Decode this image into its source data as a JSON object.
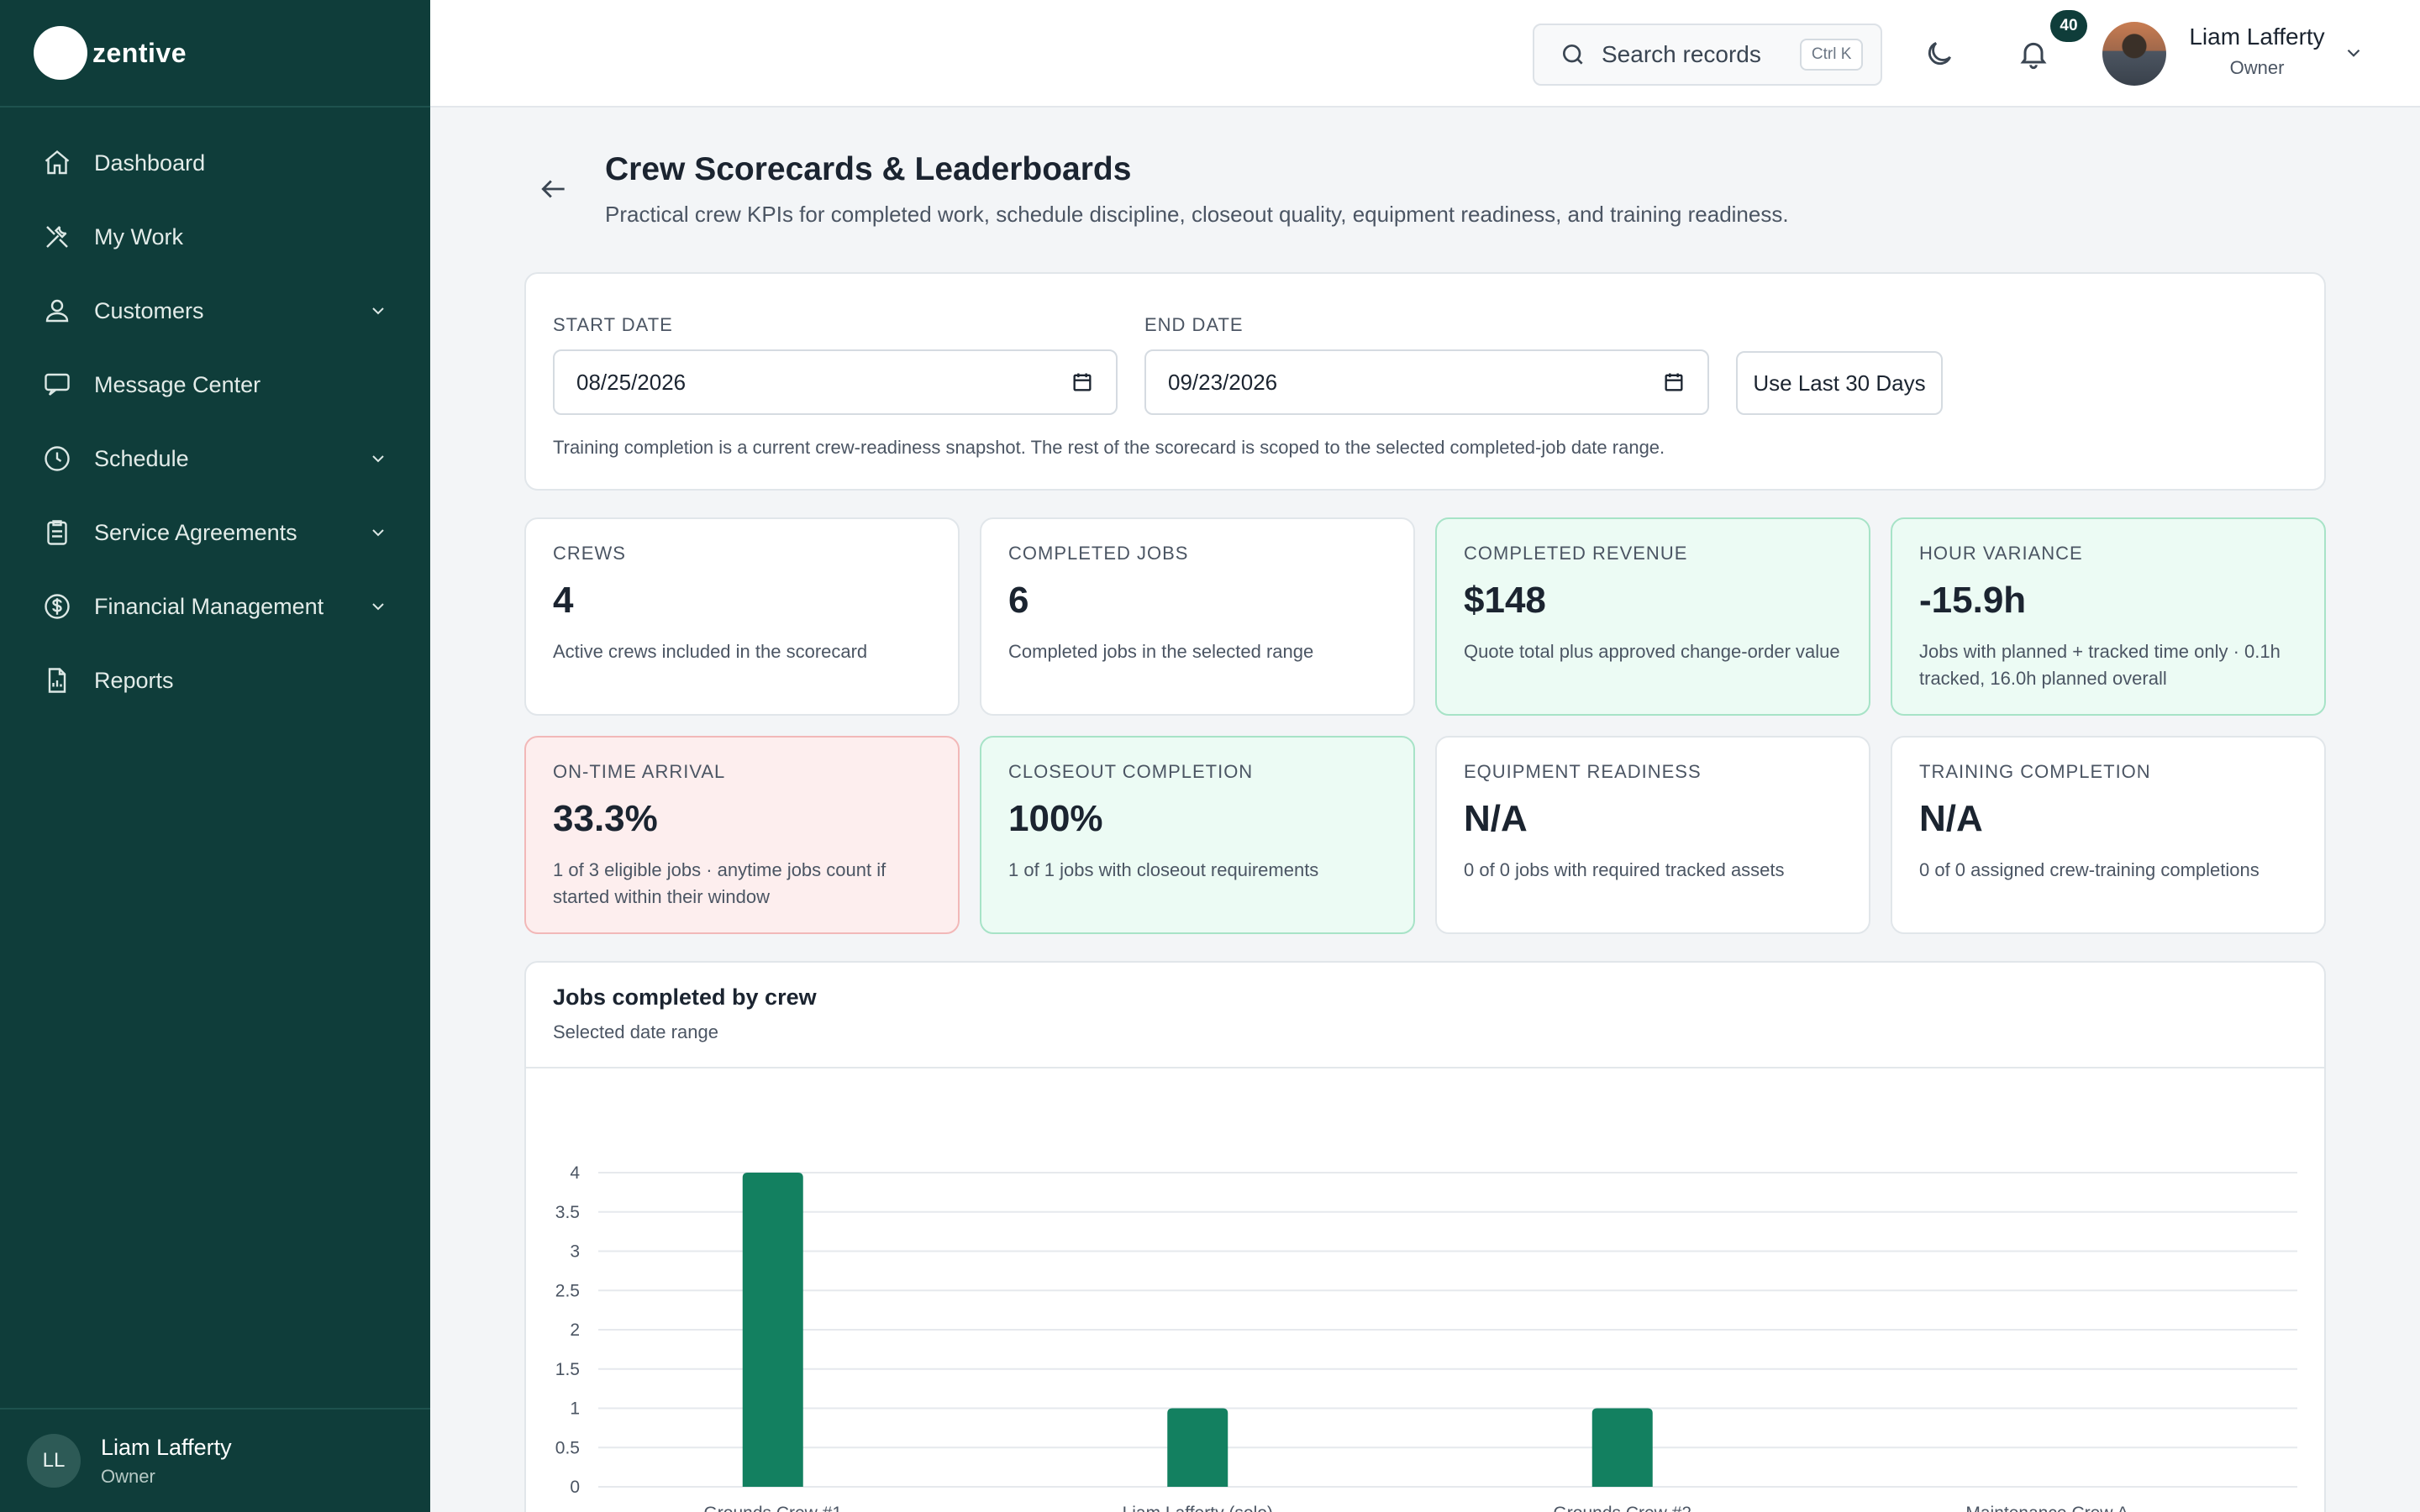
{
  "brand": {
    "name": "zentive"
  },
  "sidebar": {
    "items": [
      {
        "label": "Dashboard",
        "icon": "home-icon",
        "has_submenu": false
      },
      {
        "label": "My Work",
        "icon": "tools-icon",
        "has_submenu": false
      },
      {
        "label": "Customers",
        "icon": "users-icon",
        "has_submenu": true
      },
      {
        "label": "Message Center",
        "icon": "chat-icon",
        "has_submenu": false
      },
      {
        "label": "Schedule",
        "icon": "clock-icon",
        "has_submenu": true
      },
      {
        "label": "Service Agreements",
        "icon": "clipboard-icon",
        "has_submenu": true
      },
      {
        "label": "Financial Management",
        "icon": "dollar-icon",
        "has_submenu": true
      },
      {
        "label": "Reports",
        "icon": "report-icon",
        "has_submenu": false
      }
    ],
    "user": {
      "initials": "LL",
      "name": "Liam Lafferty",
      "role": "Owner"
    }
  },
  "topbar": {
    "search_label": "Search records",
    "search_shortcut": "Ctrl K",
    "notification_count": "40",
    "user_name": "Liam Lafferty",
    "user_role": "Owner"
  },
  "page": {
    "title": "Crew Scorecards & Leaderboards",
    "subtitle": "Practical crew KPIs for completed work, schedule discipline, closeout quality, equipment readiness, and training readiness."
  },
  "filters": {
    "start_label": "START DATE",
    "start_value": "08/25/2026",
    "end_label": "END DATE",
    "end_value": "09/23/2026",
    "preset_button": "Use Last 30 Days",
    "note": "Training completion is a current crew-readiness snapshot. The rest of the scorecard is scoped to the selected completed-job date range."
  },
  "kpis": [
    {
      "title": "CREWS",
      "value": "4",
      "desc": "Active crews included in the scorecard",
      "tone": "neutral"
    },
    {
      "title": "COMPLETED JOBS",
      "value": "6",
      "desc": "Completed jobs in the selected range",
      "tone": "neutral"
    },
    {
      "title": "COMPLETED REVENUE",
      "value": "$148",
      "desc": "Quote total plus approved change-order value",
      "tone": "green"
    },
    {
      "title": "HOUR VARIANCE",
      "value": "-15.9h",
      "desc": "Jobs with planned + tracked time only · 0.1h tracked, 16.0h planned overall",
      "tone": "green"
    },
    {
      "title": "ON-TIME ARRIVAL",
      "value": "33.3%",
      "desc": "1 of 3 eligible jobs · anytime jobs count if started within their window",
      "tone": "red"
    },
    {
      "title": "CLOSEOUT COMPLETION",
      "value": "100%",
      "desc": "1 of 1 jobs with closeout requirements",
      "tone": "green"
    },
    {
      "title": "EQUIPMENT READINESS",
      "value": "N/A",
      "desc": "0 of 0 jobs with required tracked assets",
      "tone": "neutral"
    },
    {
      "title": "TRAINING COMPLETION",
      "value": "N/A",
      "desc": "0 of 0 assigned crew-training completions",
      "tone": "neutral"
    }
  ],
  "chart": {
    "title": "Jobs completed by crew",
    "subtitle": "Selected date range"
  },
  "chart_data": {
    "type": "bar",
    "categories": [
      "Grounds Crew #1",
      "Liam Lafferty (solo)",
      "Grounds Crew #2",
      "Maintenance Crew A"
    ],
    "values": [
      4,
      1,
      1,
      0
    ],
    "ylim": [
      0,
      4
    ],
    "yticks": [
      "0",
      "0.5",
      "1",
      "1.5",
      "2",
      "2.5",
      "3",
      "3.5",
      "4"
    ],
    "grid": true,
    "bar_color": "#138060"
  },
  "colors": {
    "sidebar_bg": "#0f3d3a",
    "accent_green": "#138060",
    "positive_card_bg": "#ecfbf4",
    "negative_card_bg": "#fdeeee"
  }
}
